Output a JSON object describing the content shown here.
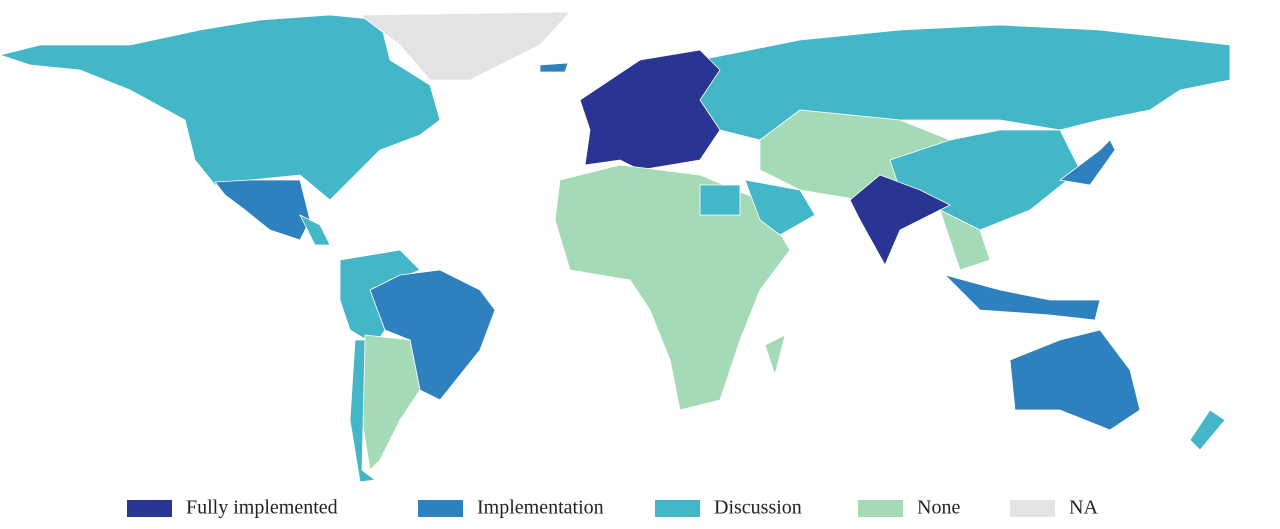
{
  "legend": {
    "items": [
      {
        "name": "Fully implemented",
        "color": "#2a3593"
      },
      {
        "name": "Implementation",
        "color": "#2e80be"
      },
      {
        "name": "Discussion",
        "color": "#43b6c7"
      },
      {
        "name": "None",
        "color": "#a4dab5"
      },
      {
        "name": "NA",
        "color": "#e3e3e3"
      }
    ]
  }
}
